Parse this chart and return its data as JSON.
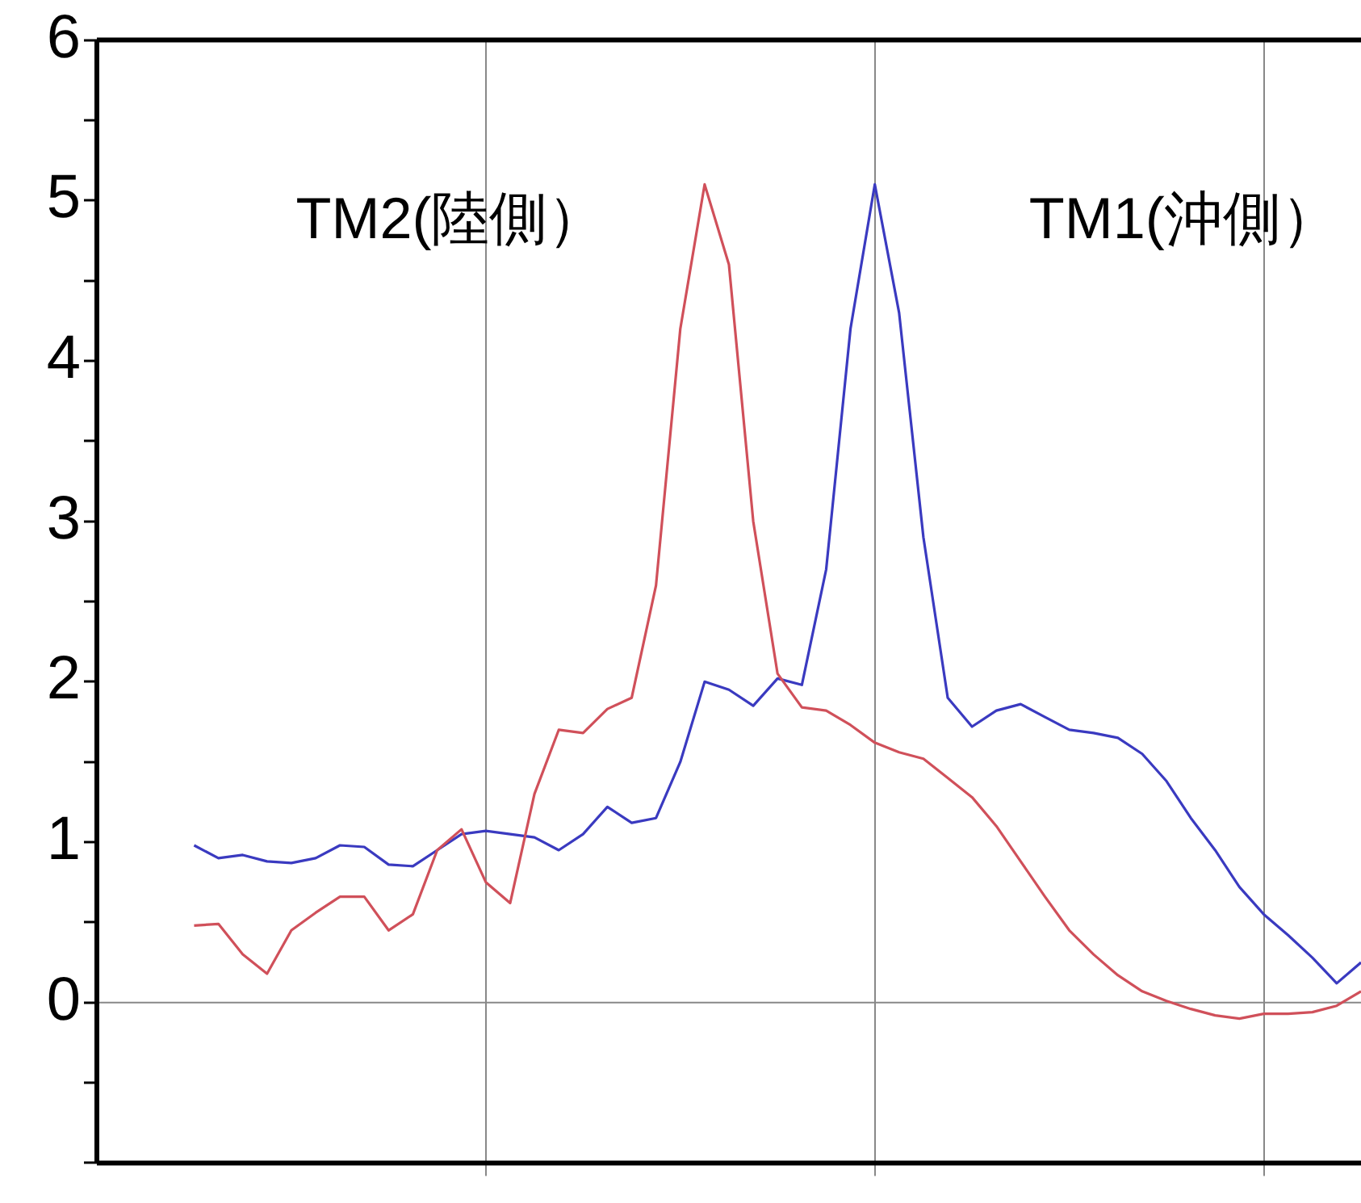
{
  "chart_data": {
    "type": "line",
    "categories": [
      null,
      null,
      null,
      null,
      null,
      null,
      null,
      null,
      null,
      null,
      null,
      null,
      null,
      null,
      null,
      null,
      null,
      null,
      null,
      null,
      null,
      null,
      null,
      null,
      null,
      null,
      null,
      null,
      null,
      null,
      null,
      null,
      null,
      null,
      null,
      null,
      null,
      null,
      null,
      null,
      null,
      null,
      null,
      null,
      null,
      null,
      null,
      null,
      null,
      null,
      null,
      null,
      null
    ],
    "series": [
      {
        "name": "TM2(陸側）",
        "color": "#d0505a",
        "values": [
          null,
          null,
          null,
          null,
          0.48,
          0.49,
          0.3,
          0.18,
          0.45,
          0.56,
          0.66,
          0.66,
          0.45,
          0.55,
          0.95,
          1.08,
          0.75,
          0.62,
          1.3,
          1.7,
          1.68,
          1.83,
          1.9,
          2.6,
          4.2,
          5.1,
          4.6,
          3.0,
          2.05,
          1.84,
          1.82,
          1.73,
          1.62,
          1.56,
          1.52,
          1.4,
          1.28,
          1.1,
          0.88,
          0.66,
          0.45,
          0.3,
          0.17,
          0.07,
          0.01,
          -0.04,
          -0.08,
          -0.1,
          -0.07,
          -0.07,
          -0.06,
          -0.02,
          0.07
        ]
      },
      {
        "name": "TM1(沖側）",
        "color": "#3a3ac0",
        "values": [
          null,
          null,
          null,
          null,
          0.98,
          0.9,
          0.92,
          0.88,
          0.87,
          0.9,
          0.98,
          0.97,
          0.86,
          0.85,
          0.95,
          1.05,
          1.07,
          1.05,
          1.03,
          0.95,
          1.05,
          1.22,
          1.12,
          1.15,
          1.5,
          2.0,
          1.95,
          1.85,
          2.02,
          1.98,
          2.7,
          4.2,
          5.1,
          4.3,
          2.9,
          1.9,
          1.72,
          1.82,
          1.86,
          1.78,
          1.7,
          1.68,
          1.65,
          1.55,
          1.38,
          1.15,
          0.95,
          0.72,
          0.55,
          0.42,
          0.28,
          0.12,
          0.25
        ]
      }
    ],
    "ylim": [
      -1,
      6
    ],
    "yticks": [
      {
        "value": -1,
        "label": null
      },
      {
        "value": -0.5,
        "label": null
      },
      0,
      {
        "value": 0.5,
        "label": null
      },
      1,
      {
        "value": 1.5,
        "label": null
      },
      2,
      {
        "value": 2.5,
        "label": null
      },
      3,
      {
        "value": 3.5,
        "label": null
      },
      4,
      {
        "value": 4.5,
        "label": null
      },
      5,
      {
        "value": 5.5,
        "label": null
      },
      6
    ],
    "tick_labels": "y",
    "grid": "x",
    "legend": false,
    "ref_lines": [
      {
        "axis": "y",
        "value": 0
      }
    ],
    "marker": "none",
    "line_style": "solid"
  }
}
